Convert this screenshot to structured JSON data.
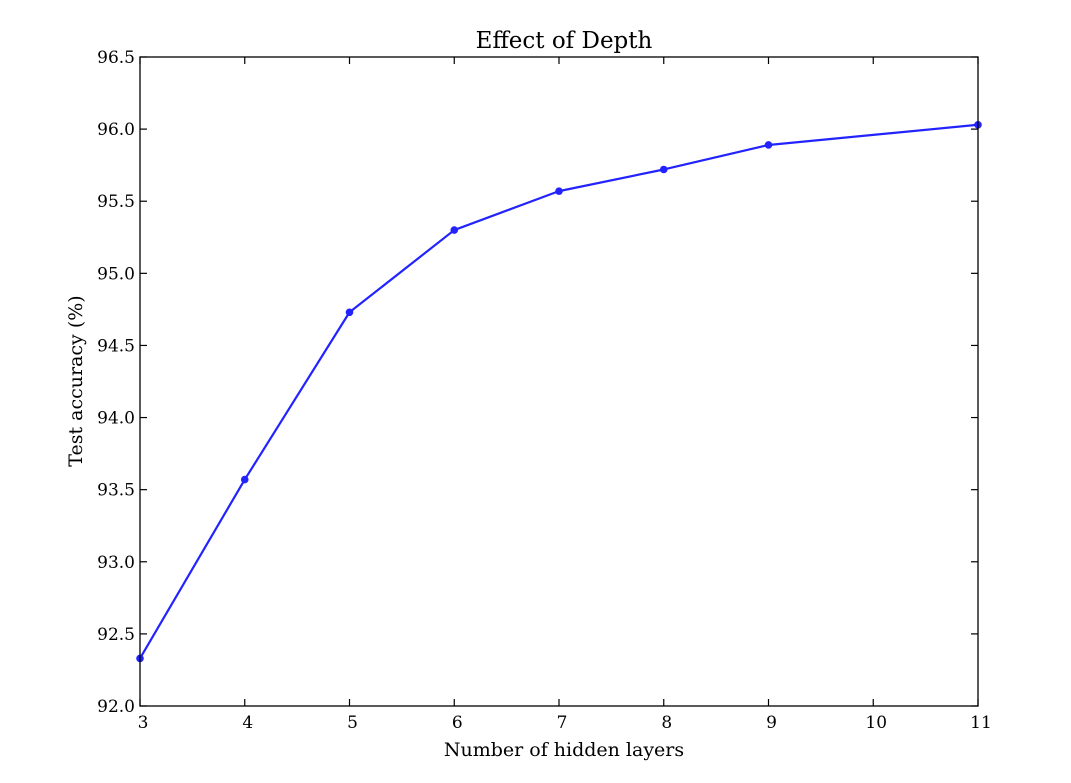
{
  "chart_data": {
    "type": "line",
    "title": "Effect of Depth",
    "xlabel": "Number of hidden layers",
    "ylabel": "Test accuracy (%)",
    "xlim": [
      3,
      11
    ],
    "ylim": [
      92.0,
      96.5
    ],
    "xticks": [
      "3",
      "4",
      "5",
      "6",
      "7",
      "8",
      "9",
      "10",
      "11"
    ],
    "yticks": [
      "92.0",
      "92.5",
      "93.0",
      "93.5",
      "94.0",
      "94.5",
      "95.0",
      "95.5",
      "96.0",
      "96.5"
    ],
    "grid": false,
    "series": [
      {
        "color": "#2323ff",
        "marker": "circle",
        "x": [
          3,
          4,
          5,
          6,
          7,
          8,
          9,
          11
        ],
        "y": [
          92.33,
          93.57,
          94.73,
          95.3,
          95.57,
          95.72,
          95.89,
          96.03
        ]
      }
    ]
  }
}
